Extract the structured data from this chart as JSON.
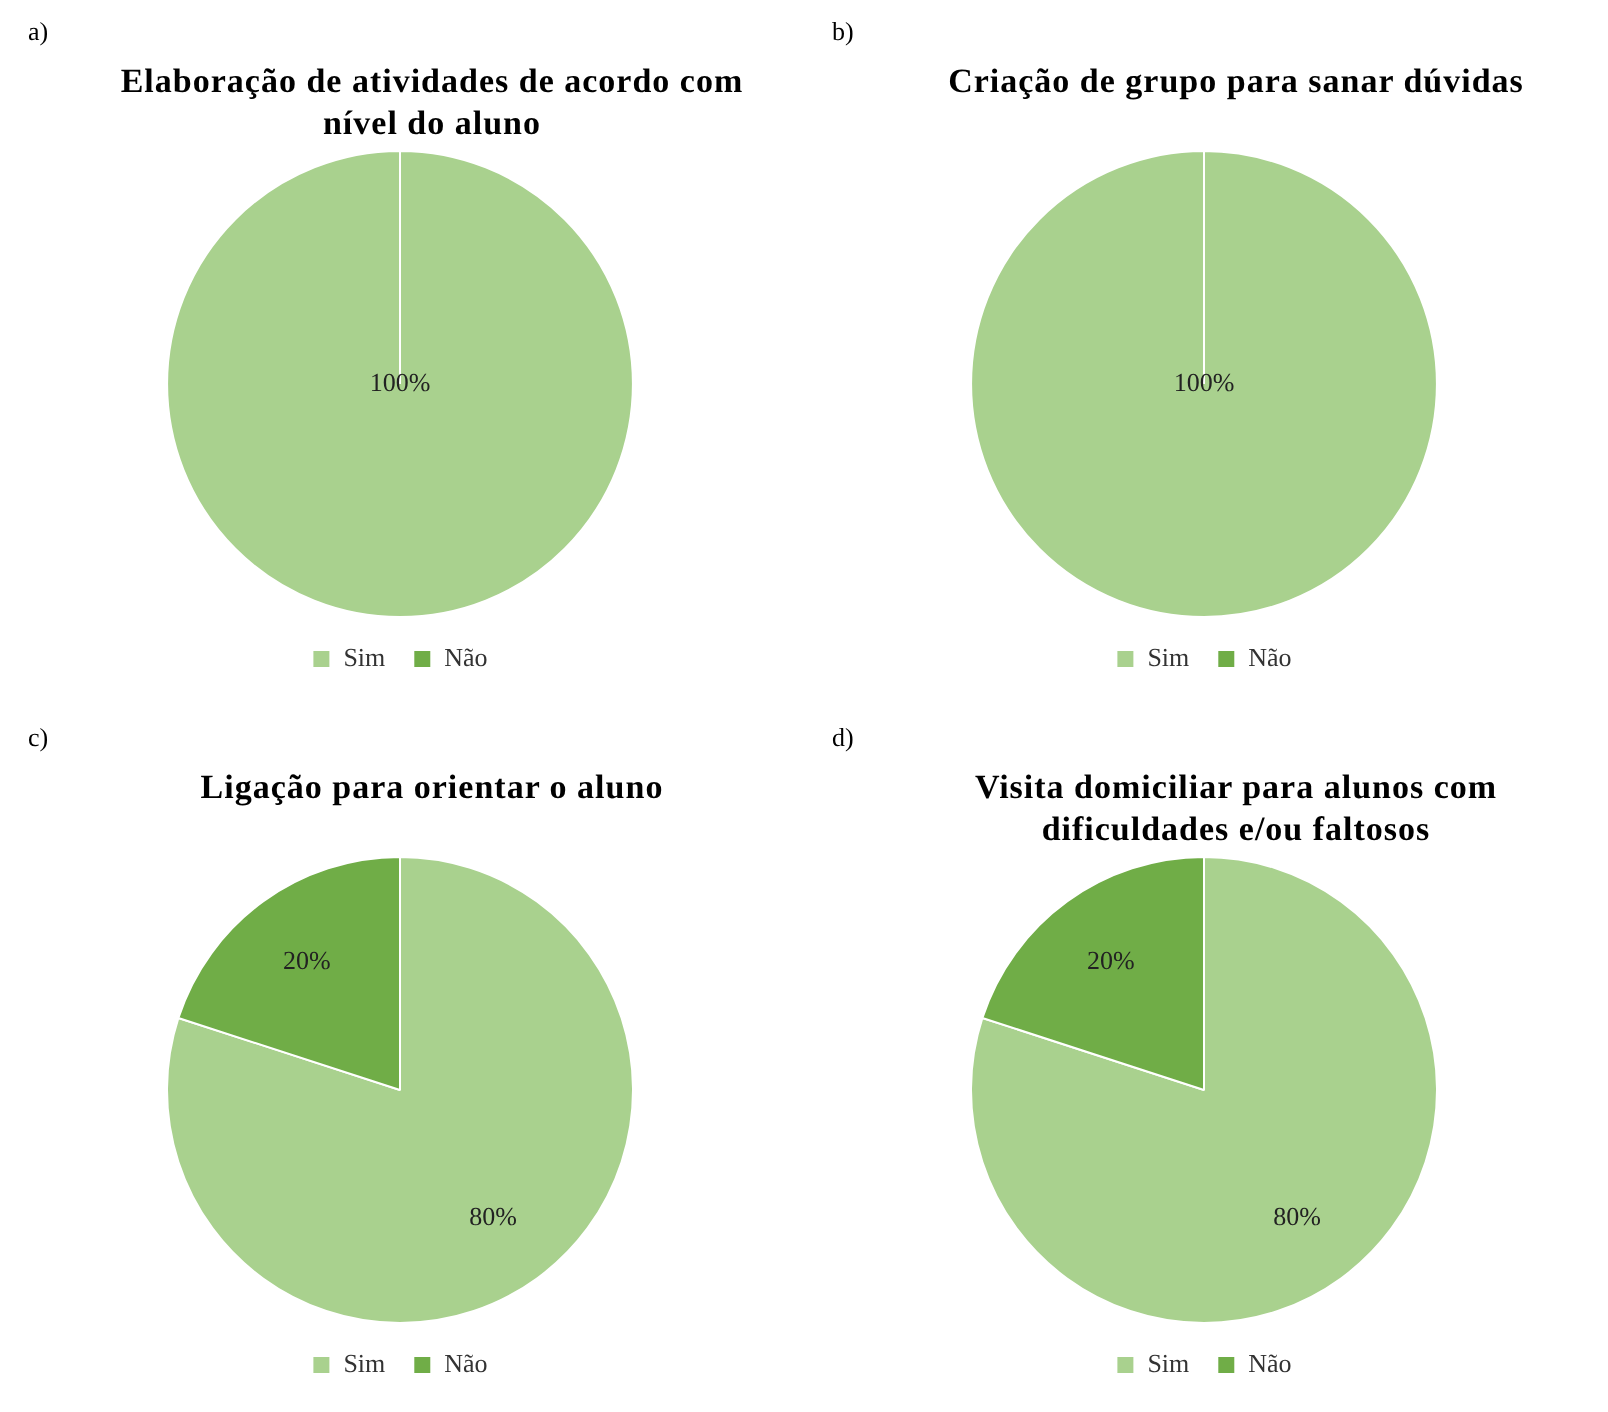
{
  "chart_data": [
    {
      "type": "pie",
      "title": "Elaboração de atividades de acordo com nível do aluno",
      "annotations": [
        "a)"
      ],
      "categories": [
        "Sim",
        "Não"
      ],
      "values": [
        100,
        0
      ],
      "colors": [
        "#a9d18e",
        "#70ad47"
      ],
      "value_labels": [
        "100%",
        null
      ],
      "legend": "bottom"
    },
    {
      "type": "pie",
      "title": "Criação de grupo para sanar dúvidas",
      "annotations": [
        "b)"
      ],
      "categories": [
        "Sim",
        "Não"
      ],
      "values": [
        100,
        0
      ],
      "colors": [
        "#a9d18e",
        "#70ad47"
      ],
      "value_labels": [
        "100%",
        null
      ],
      "legend": "bottom"
    },
    {
      "type": "pie",
      "title": "Ligação para orientar o aluno",
      "annotations": [
        "c)"
      ],
      "categories": [
        "Sim",
        "Não"
      ],
      "values": [
        80,
        20
      ],
      "colors": [
        "#a9d18e",
        "#70ad47"
      ],
      "value_labels": [
        "80%",
        "20%"
      ],
      "legend": "bottom"
    },
    {
      "type": "pie",
      "title": "Visita domiciliar para alunos com dificuldades e/ou faltosos",
      "annotations": [
        "d)"
      ],
      "categories": [
        "Sim",
        "Não"
      ],
      "values": [
        80,
        20
      ],
      "colors": [
        "#a9d18e",
        "#70ad47"
      ],
      "value_labels": [
        "80%",
        "20%"
      ],
      "legend": "bottom"
    }
  ]
}
